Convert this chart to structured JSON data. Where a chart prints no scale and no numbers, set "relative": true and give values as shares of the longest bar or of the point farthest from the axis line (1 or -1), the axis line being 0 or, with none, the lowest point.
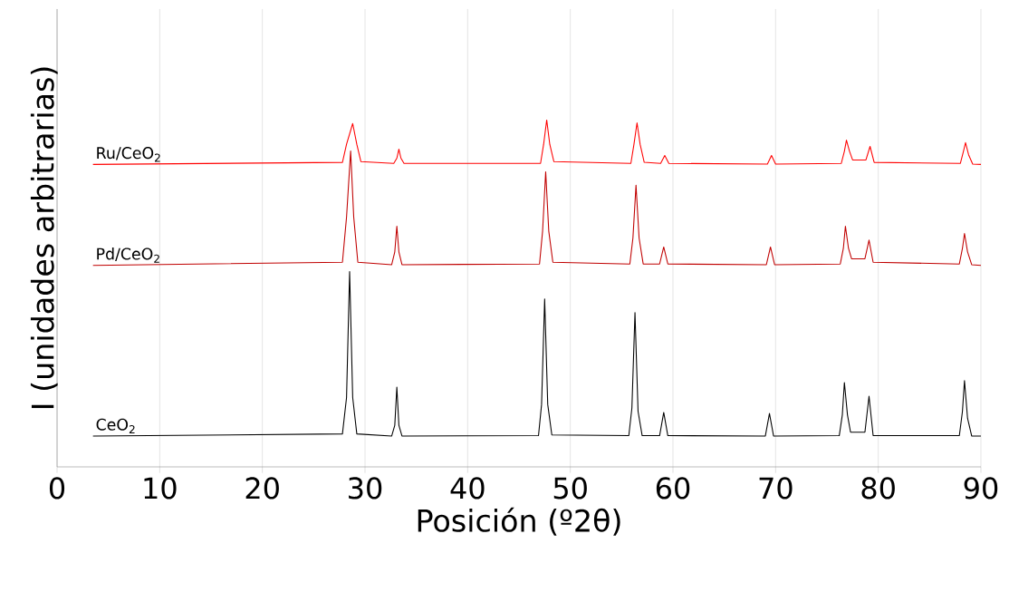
{
  "chart_data": {
    "type": "line",
    "relative": true,
    "xlabel": "Posición (º2θ)",
    "ylabel": "I (unidades arbitrarias)",
    "xlim": [
      0,
      90
    ],
    "xticks": [
      0,
      10,
      20,
      30,
      40,
      50,
      60,
      70,
      80,
      90
    ],
    "grid": "x",
    "marker": "none",
    "line_style": "solid",
    "series": [
      {
        "name": "Ru/CeO$_{2}$",
        "color": "#ff0000",
        "x": [
          3.5,
          27.8,
          28.2,
          28.8,
          29.2,
          29.6,
          32.8,
          33.1,
          33.3,
          33.5,
          33.8,
          47.1,
          47.4,
          47.7,
          48.0,
          48.4,
          55.9,
          56.2,
          56.5,
          56.8,
          57.2,
          58.8,
          59.2,
          59.6,
          69.2,
          69.6,
          70.0,
          76.4,
          76.7,
          76.9,
          77.2,
          77.5,
          78.8,
          79.2,
          79.6,
          88.0,
          88.3,
          88.5,
          88.8,
          89.2,
          90
        ],
        "values": [
          0.872,
          0.878,
          0.93,
          0.99,
          0.93,
          0.88,
          0.875,
          0.89,
          0.916,
          0.89,
          0.875,
          0.875,
          0.93,
          1,
          0.93,
          0.88,
          0.875,
          0.93,
          0.992,
          0.93,
          0.878,
          0.875,
          0.898,
          0.875,
          0.873,
          0.898,
          0.873,
          0.875,
          0.91,
          0.942,
          0.91,
          0.885,
          0.885,
          0.924,
          0.878,
          0.875,
          0.91,
          0.935,
          0.9,
          0.873,
          0.872
        ]
      },
      {
        "name": "Pd/CeO$_{2}$",
        "color": "#c00000",
        "x": [
          3.5,
          27.8,
          28.2,
          28.6,
          28.9,
          29.3,
          32.6,
          32.9,
          33.1,
          33.3,
          33.6,
          47.0,
          47.3,
          47.6,
          47.9,
          48.3,
          55.8,
          56.1,
          56.4,
          56.7,
          57.1,
          58.7,
          59.1,
          59.5,
          69.1,
          69.5,
          69.9,
          76.3,
          76.6,
          76.8,
          77.1,
          77.4,
          78.7,
          79.1,
          79.5,
          87.9,
          88.2,
          88.4,
          88.7,
          89.1,
          90
        ],
        "values": [
          0.581,
          0.59,
          0.72,
          0.911,
          0.72,
          0.59,
          0.583,
          0.62,
          0.694,
          0.62,
          0.583,
          0.585,
          0.68,
          0.851,
          0.68,
          0.59,
          0.585,
          0.66,
          0.812,
          0.66,
          0.585,
          0.585,
          0.634,
          0.585,
          0.583,
          0.634,
          0.583,
          0.585,
          0.63,
          0.694,
          0.63,
          0.6,
          0.6,
          0.654,
          0.59,
          0.585,
          0.63,
          0.673,
          0.62,
          0.583,
          0.581
        ]
      },
      {
        "name": "CeO$_{2}$",
        "color": "#000000",
        "x": [
          3.5,
          27.8,
          28.2,
          28.5,
          28.8,
          29.2,
          32.6,
          32.9,
          33.1,
          33.3,
          33.6,
          46.9,
          47.2,
          47.5,
          47.8,
          48.2,
          55.7,
          56.0,
          56.3,
          56.6,
          57.0,
          58.7,
          59.1,
          59.5,
          69.0,
          69.4,
          69.8,
          76.2,
          76.5,
          76.7,
          77.0,
          77.3,
          78.7,
          79.1,
          79.5,
          87.9,
          88.2,
          88.4,
          88.7,
          89.1,
          90
        ],
        "values": [
          0.089,
          0.095,
          0.2,
          0.563,
          0.2,
          0.095,
          0.089,
          0.12,
          0.23,
          0.12,
          0.089,
          0.09,
          0.18,
          0.484,
          0.18,
          0.092,
          0.09,
          0.17,
          0.445,
          0.16,
          0.09,
          0.09,
          0.157,
          0.09,
          0.089,
          0.154,
          0.089,
          0.09,
          0.15,
          0.243,
          0.15,
          0.1,
          0.1,
          0.204,
          0.09,
          0.09,
          0.16,
          0.249,
          0.14,
          0.089,
          0.089
        ]
      }
    ]
  }
}
